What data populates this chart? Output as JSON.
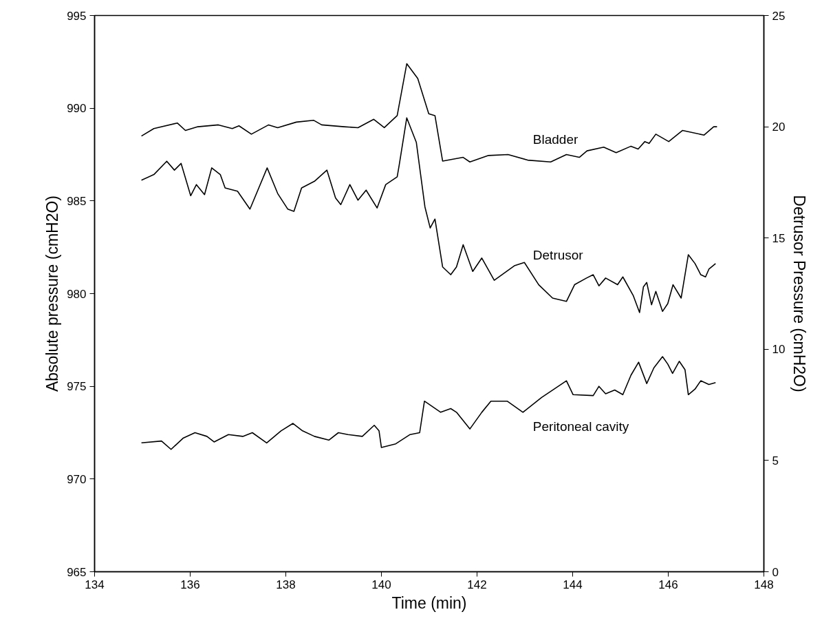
{
  "chart_data": {
    "type": "line",
    "xlabel": "Time (min)",
    "ylabel": "Absolute pressure (cmH2O)",
    "y2label": "Detrusor Pressure (cmH2O)",
    "xlim": [
      134,
      148
    ],
    "xticks": [
      134,
      136,
      138,
      140,
      142,
      144,
      146,
      148
    ],
    "ylim": [
      965,
      995
    ],
    "yticks": [
      965,
      970,
      975,
      980,
      985,
      990,
      995
    ],
    "y2lim": [
      0,
      25
    ],
    "y2ticks": [
      0,
      5,
      10,
      15,
      20,
      25
    ],
    "grid": false,
    "marker": "none",
    "line_style": "solid",
    "series": [
      {
        "name": "Bladder",
        "color": "#000000",
        "x": [
          134.98,
          135.24,
          135.73,
          135.9,
          136.16,
          136.59,
          136.88,
          137.02,
          137.28,
          137.64,
          137.83,
          138.22,
          138.58,
          138.75,
          139.22,
          139.51,
          139.84,
          140.06,
          140.33,
          140.53,
          140.76,
          140.99,
          141.12,
          141.28,
          141.71,
          141.85,
          142.24,
          142.65,
          143.06,
          143.54,
          143.87,
          144.14,
          144.3,
          144.65,
          144.91,
          145.22,
          145.37,
          145.51,
          145.6,
          145.74,
          146.01,
          146.3,
          146.75,
          146.95,
          147.02
        ],
        "values": [
          988.5,
          988.9,
          989.2,
          988.8,
          989.0,
          989.1,
          988.9,
          989.05,
          988.6,
          989.1,
          988.95,
          989.25,
          989.35,
          989.1,
          989.0,
          988.95,
          989.4,
          988.95,
          989.6,
          992.4,
          991.6,
          989.7,
          989.6,
          987.15,
          987.35,
          987.1,
          987.45,
          987.5,
          987.2,
          987.1,
          987.5,
          987.35,
          987.7,
          987.9,
          987.6,
          987.95,
          987.8,
          988.2,
          988.1,
          988.6,
          988.2,
          988.8,
          988.55,
          989.0,
          989.0
        ]
      },
      {
        "name": "Detrusor",
        "color": "#000000",
        "axis": "y2",
        "x": [
          134.98,
          135.24,
          135.51,
          135.67,
          135.81,
          136.01,
          136.13,
          136.3,
          136.45,
          136.63,
          136.73,
          136.99,
          137.25,
          137.61,
          137.83,
          138.04,
          138.17,
          138.33,
          138.6,
          138.86,
          139.04,
          139.15,
          139.34,
          139.51,
          139.68,
          139.91,
          140.09,
          140.33,
          140.37,
          140.53,
          140.73,
          140.91,
          141.02,
          141.12,
          141.28,
          141.45,
          141.57,
          141.71,
          141.91,
          142.1,
          142.36,
          142.78,
          142.99,
          143.29,
          143.58,
          143.87,
          144.04,
          144.29,
          144.43,
          144.55,
          144.69,
          144.94,
          145.05,
          145.27,
          145.4,
          145.48,
          145.55,
          145.65,
          145.74,
          145.88,
          145.99,
          146.1,
          146.27,
          146.42,
          146.56,
          146.68,
          146.78,
          146.85,
          146.99
        ],
        "values": [
          17.6,
          17.85,
          18.45,
          18.05,
          18.35,
          16.9,
          17.4,
          16.95,
          18.15,
          17.85,
          17.25,
          17.1,
          16.3,
          18.15,
          17.0,
          16.3,
          16.2,
          17.25,
          17.55,
          18.05,
          16.8,
          16.5,
          17.4,
          16.7,
          17.15,
          16.35,
          17.4,
          17.75,
          18.25,
          20.4,
          19.3,
          16.4,
          15.45,
          15.85,
          13.7,
          13.35,
          13.7,
          14.7,
          13.5,
          14.1,
          13.1,
          13.75,
          13.9,
          12.9,
          12.3,
          12.15,
          12.9,
          13.2,
          13.35,
          12.85,
          13.2,
          12.9,
          13.25,
          12.4,
          11.65,
          12.8,
          13.0,
          12.0,
          12.6,
          11.7,
          12.05,
          12.9,
          12.3,
          14.25,
          13.85,
          13.35,
          13.25,
          13.6,
          13.85
        ]
      },
      {
        "name": "Peritoneal cavity",
        "color": "#000000",
        "x": [
          134.98,
          135.4,
          135.6,
          135.85,
          136.1,
          136.35,
          136.5,
          136.8,
          137.1,
          137.3,
          137.6,
          137.9,
          138.15,
          138.35,
          138.6,
          138.9,
          139.1,
          139.3,
          139.6,
          139.85,
          139.95,
          140.0,
          140.3,
          140.6,
          140.8,
          140.9,
          141.24,
          141.45,
          141.57,
          141.85,
          142.1,
          142.29,
          142.63,
          142.96,
          143.35,
          143.64,
          143.87,
          144.01,
          144.43,
          144.55,
          144.69,
          144.88,
          145.05,
          145.22,
          145.38,
          145.55,
          145.7,
          145.88,
          145.99,
          146.09,
          146.23,
          146.35,
          146.42,
          146.56,
          146.68,
          146.85,
          146.99
        ],
        "values": [
          971.95,
          972.05,
          971.6,
          972.2,
          972.5,
          972.3,
          972.0,
          972.4,
          972.3,
          972.5,
          971.95,
          972.6,
          973.0,
          972.6,
          972.3,
          972.1,
          972.5,
          972.4,
          972.3,
          972.9,
          972.6,
          971.7,
          971.9,
          972.4,
          972.5,
          974.2,
          973.6,
          973.8,
          973.6,
          972.7,
          973.6,
          974.2,
          974.2,
          973.6,
          974.4,
          974.9,
          975.3,
          974.55,
          974.5,
          975.0,
          974.6,
          974.8,
          974.55,
          975.6,
          976.3,
          975.15,
          976.0,
          976.6,
          976.2,
          975.7,
          976.35,
          975.9,
          974.55,
          974.85,
          975.3,
          975.1,
          975.2
        ]
      }
    ]
  }
}
